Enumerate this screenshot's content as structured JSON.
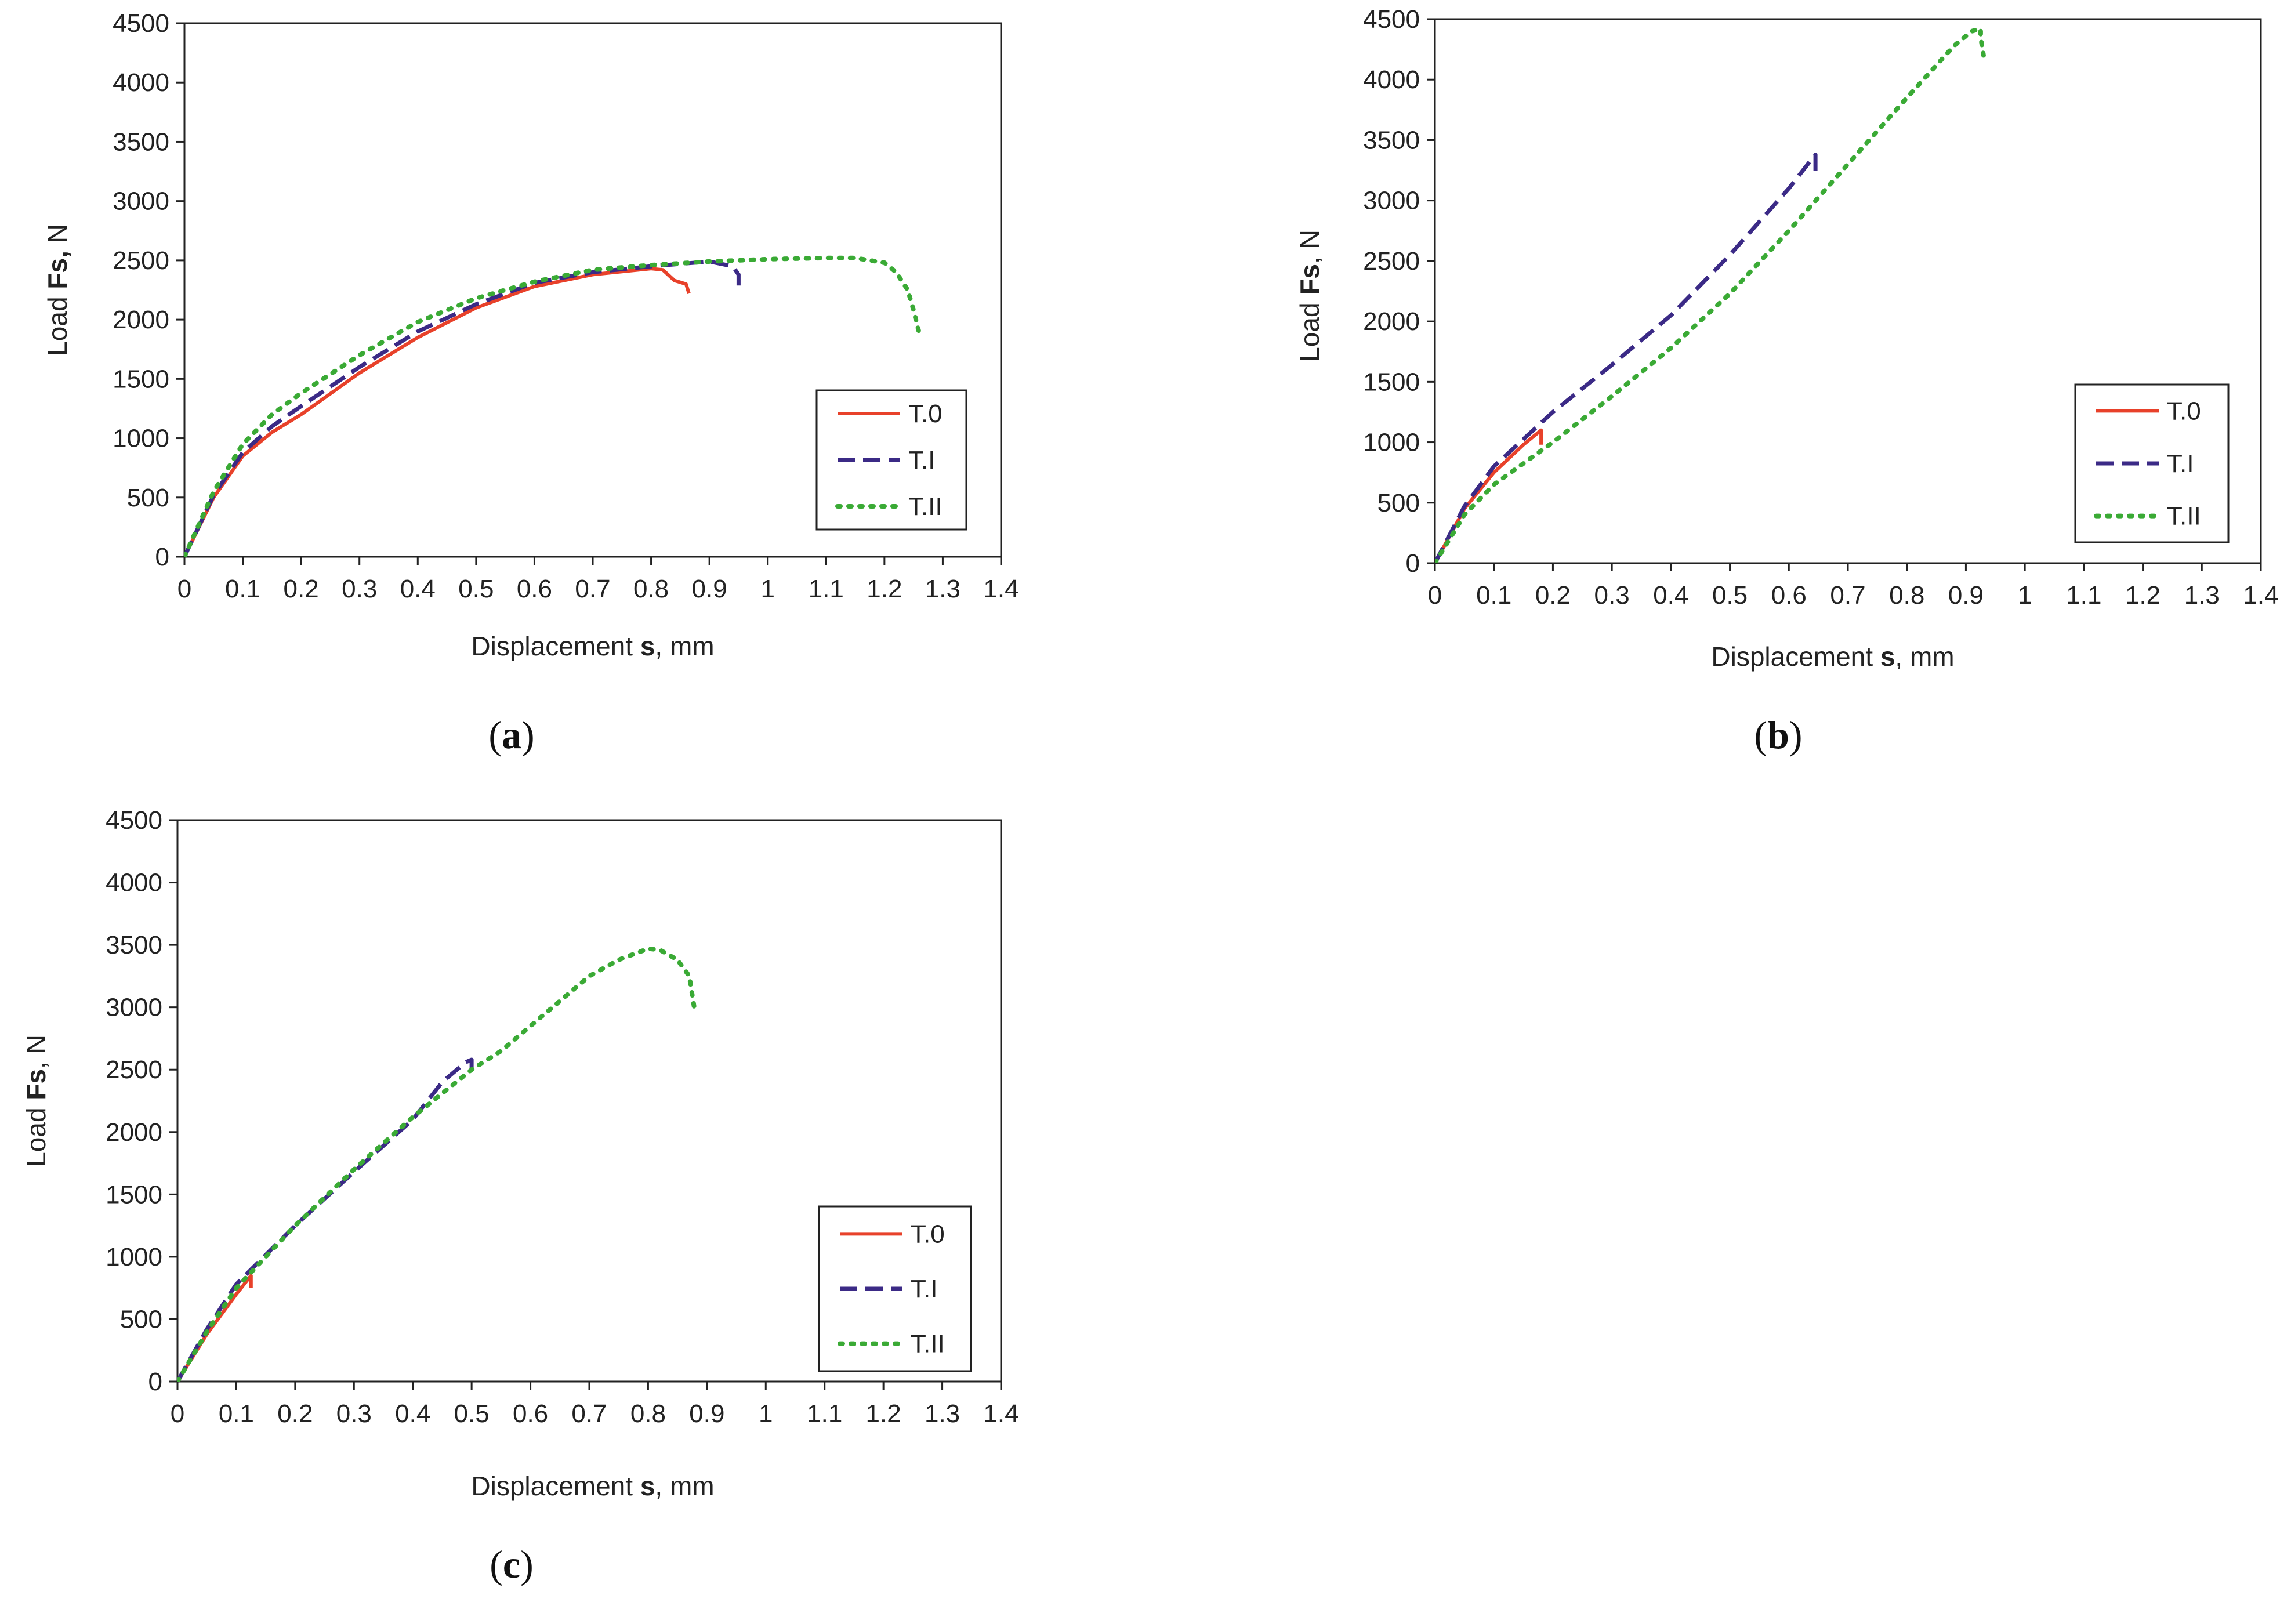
{
  "figure": {
    "panels": [
      "a",
      "b",
      "c"
    ]
  },
  "colors": {
    "T.0": "#e8412a",
    "T.I": "#3b2a86",
    "T.II": "#3aaa35",
    "axis": "#222222"
  },
  "chart_data": [
    {
      "id": "a",
      "type": "line",
      "caption": {
        "open": "(",
        "letter": "a",
        "close": ")"
      },
      "xlabel": {
        "pre": "Displacement ",
        "bold": "s",
        "post": ", mm"
      },
      "ylabel": {
        "pre": "Load ",
        "bold": "Fs,",
        "post": " N"
      },
      "xlim": [
        0,
        1.4
      ],
      "ylim": [
        0,
        4500
      ],
      "xticks": [
        "0",
        "0.1",
        "0.2",
        "0.3",
        "0.4",
        "0.5",
        "0.6",
        "0.7",
        "0.8",
        "0.9",
        "1",
        "1.1",
        "1.2",
        "1.3",
        "1.4"
      ],
      "yticks": [
        "0",
        "500",
        "1000",
        "1500",
        "2000",
        "2500",
        "3000",
        "3500",
        "4000",
        "4500"
      ],
      "legend": {
        "position": "lower-right",
        "entries": [
          "T.0",
          "T.I",
          "T.II"
        ]
      },
      "series": [
        {
          "name": "T.0",
          "style": "solid",
          "x": [
            0,
            0.05,
            0.1,
            0.15,
            0.2,
            0.3,
            0.4,
            0.5,
            0.6,
            0.7,
            0.8,
            0.82,
            0.84,
            0.86,
            0.865
          ],
          "y": [
            0,
            500,
            850,
            1050,
            1200,
            1550,
            1850,
            2100,
            2280,
            2380,
            2430,
            2420,
            2330,
            2300,
            2220
          ]
        },
        {
          "name": "T.I",
          "style": "dashed",
          "x": [
            0,
            0.05,
            0.1,
            0.15,
            0.2,
            0.3,
            0.4,
            0.5,
            0.6,
            0.7,
            0.8,
            0.9,
            0.94,
            0.95,
            0.95
          ],
          "y": [
            0,
            520,
            880,
            1100,
            1270,
            1600,
            1900,
            2130,
            2310,
            2400,
            2450,
            2490,
            2450,
            2380,
            2260
          ]
        },
        {
          "name": "T.II",
          "style": "dotted",
          "x": [
            0,
            0.05,
            0.1,
            0.15,
            0.2,
            0.3,
            0.4,
            0.5,
            0.6,
            0.7,
            0.8,
            0.9,
            1.0,
            1.1,
            1.15,
            1.2,
            1.22,
            1.24,
            1.25,
            1.26
          ],
          "y": [
            0,
            550,
            950,
            1200,
            1380,
            1700,
            1980,
            2180,
            2320,
            2420,
            2460,
            2490,
            2510,
            2520,
            2520,
            2480,
            2400,
            2250,
            2080,
            1880
          ]
        }
      ]
    },
    {
      "id": "b",
      "type": "line",
      "caption": {
        "open": "(",
        "letter": "b",
        "close": ")"
      },
      "xlabel": {
        "pre": "Displacement ",
        "bold": "s",
        "post": ", mm"
      },
      "ylabel": {
        "pre": "Load ",
        "bold": "Fs",
        "post": ", N"
      },
      "xlim": [
        0,
        1.4
      ],
      "ylim": [
        0,
        4500
      ],
      "xticks": [
        "0",
        "0.1",
        "0.2",
        "0.3",
        "0.4",
        "0.5",
        "0.6",
        "0.7",
        "0.8",
        "0.9",
        "1",
        "1.1",
        "1.2",
        "1.3",
        "1.4"
      ],
      "yticks": [
        "0",
        "500",
        "1000",
        "1500",
        "2000",
        "2500",
        "3000",
        "3500",
        "4000",
        "4500"
      ],
      "legend": {
        "position": "lower-right",
        "entries": [
          "T.0",
          "T.I",
          "T.II"
        ]
      },
      "series": [
        {
          "name": "T.0",
          "style": "solid",
          "x": [
            0,
            0.05,
            0.1,
            0.15,
            0.18,
            0.18
          ],
          "y": [
            0,
            450,
            750,
            980,
            1100,
            980
          ]
        },
        {
          "name": "T.I",
          "style": "dashed",
          "x": [
            0,
            0.05,
            0.1,
            0.2,
            0.3,
            0.4,
            0.5,
            0.6,
            0.64,
            0.645,
            0.645
          ],
          "y": [
            0,
            470,
            800,
            1250,
            1640,
            2050,
            2550,
            3100,
            3350,
            3380,
            3200
          ]
        },
        {
          "name": "T.II",
          "style": "dotted",
          "x": [
            0,
            0.05,
            0.1,
            0.2,
            0.3,
            0.4,
            0.5,
            0.6,
            0.7,
            0.8,
            0.88,
            0.91,
            0.925,
            0.925,
            0.93
          ],
          "y": [
            0,
            400,
            650,
            1000,
            1380,
            1780,
            2230,
            2750,
            3300,
            3850,
            4280,
            4400,
            4420,
            4350,
            4200
          ]
        }
      ]
    },
    {
      "id": "c",
      "type": "line",
      "caption": {
        "open": "(",
        "letter": "c",
        "close": ")"
      },
      "xlabel": {
        "pre": "Displacement ",
        "bold": "s",
        "post": ", mm"
      },
      "ylabel": {
        "pre": "Load ",
        "bold": "Fs",
        "post": ", N"
      },
      "xlim": [
        0,
        1.4
      ],
      "ylim": [
        0,
        4500
      ],
      "xticks": [
        "0",
        "0.1",
        "0.2",
        "0.3",
        "0.4",
        "0.5",
        "0.6",
        "0.7",
        "0.8",
        "0.9",
        "1",
        "1.1",
        "1.2",
        "1.3",
        "1.4"
      ],
      "yticks": [
        "0",
        "500",
        "1000",
        "1500",
        "2000",
        "2500",
        "3000",
        "3500",
        "4000",
        "4500"
      ],
      "legend": {
        "position": "lower-right",
        "entries": [
          "T.0",
          "T.I",
          "T.II"
        ]
      },
      "series": [
        {
          "name": "T.0",
          "style": "solid",
          "x": [
            0,
            0.05,
            0.1,
            0.125,
            0.125
          ],
          "y": [
            0,
            380,
            700,
            850,
            750
          ]
        },
        {
          "name": "T.I",
          "style": "dashed",
          "x": [
            0,
            0.05,
            0.1,
            0.2,
            0.3,
            0.4,
            0.45,
            0.49,
            0.5,
            0.5
          ],
          "y": [
            0,
            420,
            780,
            1250,
            1680,
            2100,
            2400,
            2560,
            2580,
            2450
          ]
        },
        {
          "name": "T.II",
          "style": "dotted",
          "x": [
            0,
            0.05,
            0.1,
            0.2,
            0.3,
            0.4,
            0.5,
            0.55,
            0.6,
            0.7,
            0.75,
            0.8,
            0.82,
            0.85,
            0.87,
            0.875,
            0.88
          ],
          "y": [
            0,
            400,
            750,
            1250,
            1700,
            2120,
            2500,
            2650,
            2850,
            3250,
            3380,
            3470,
            3460,
            3380,
            3250,
            3100,
            2950
          ]
        }
      ]
    }
  ]
}
